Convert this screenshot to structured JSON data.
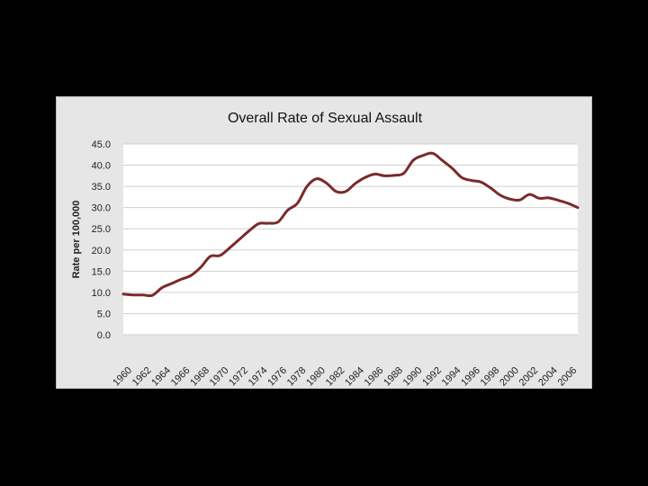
{
  "colors": {
    "background": "#000000",
    "panel": "#e6e6e6",
    "plot_area": "#ffffff",
    "grid": "#d0d0d0",
    "series": "#7a2a2a"
  },
  "chart_data": {
    "type": "line",
    "title": "Overall Rate of Sexual Assault",
    "xlabel": "",
    "ylabel": "Rate per 100,000",
    "ylim": [
      0,
      45
    ],
    "yticks": [
      "0.0",
      "5.0",
      "10.0",
      "15.0",
      "20.0",
      "25.0",
      "30.0",
      "35.0",
      "40.0",
      "45.0"
    ],
    "xtick_labels": [
      "1960",
      "1962",
      "1964",
      "1966",
      "1968",
      "1970",
      "1972",
      "1974",
      "1976",
      "1978",
      "1980",
      "1982",
      "1984",
      "1986",
      "1988",
      "1990",
      "1992",
      "1994",
      "1996",
      "1998",
      "2000",
      "2002",
      "2004",
      "2006"
    ],
    "grid": "horizontal",
    "legend": "none",
    "x": [
      1960,
      1961,
      1962,
      1963,
      1964,
      1965,
      1966,
      1967,
      1968,
      1969,
      1970,
      1971,
      1972,
      1973,
      1974,
      1975,
      1976,
      1977,
      1978,
      1979,
      1980,
      1981,
      1982,
      1983,
      1984,
      1985,
      1986,
      1987,
      1988,
      1989,
      1990,
      1991,
      1992,
      1993,
      1994,
      1995,
      1996,
      1997,
      1998,
      1999,
      2000,
      2001,
      2002,
      2003,
      2004,
      2005,
      2006,
      2007
    ],
    "series": [
      {
        "values": [
          9.6,
          9.4,
          9.4,
          9.3,
          11.1,
          12.1,
          13.1,
          14.0,
          15.9,
          18.5,
          18.7,
          20.5,
          22.5,
          24.5,
          26.2,
          26.3,
          26.6,
          29.4,
          31.0,
          35.0,
          36.8,
          35.8,
          33.8,
          33.8,
          35.7,
          37.1,
          37.9,
          37.5,
          37.6,
          38.1,
          41.2,
          42.3,
          42.8,
          41.1,
          39.3,
          37.1,
          36.4,
          36.0,
          34.6,
          32.9,
          32.0,
          31.8,
          33.1,
          32.2,
          32.3,
          31.7,
          31.0,
          30.0
        ]
      }
    ]
  }
}
